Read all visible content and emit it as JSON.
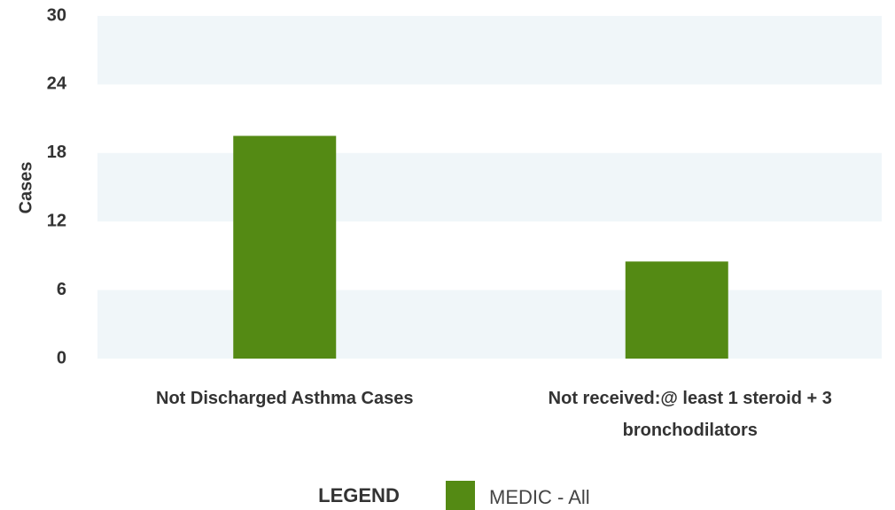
{
  "chart_data": {
    "type": "bar",
    "y_label": "Cases",
    "categories": [
      "Not Discharged Asthma Cases",
      "Not received:@ least 1 steroid + 3 bronchodilators"
    ],
    "series": [
      {
        "name": "MEDIC - All",
        "color": "#548a14",
        "values": [
          19.5,
          8.5
        ]
      }
    ],
    "ylim": [
      0,
      30
    ],
    "yticks": [
      0,
      6,
      12,
      18,
      24,
      30
    ],
    "band_color": "#f0f6f9",
    "legend_title": "LEGEND",
    "legend_position": "bottom"
  }
}
